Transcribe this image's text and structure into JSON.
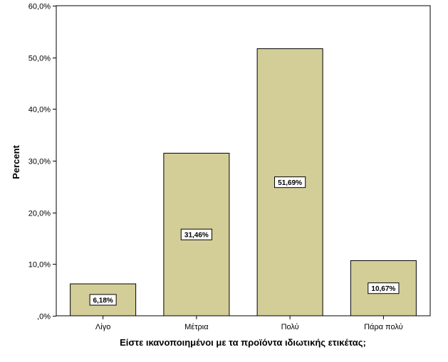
{
  "chart_data": {
    "type": "bar",
    "xlabel": "Είστε ικανοποιημένοι με τα προϊόντα ιδιωτικής ετικέτας;",
    "ylabel": "Percent",
    "categories": [
      "Λίγο",
      "Μέτρια",
      "Πολύ",
      "Πάρα πολύ"
    ],
    "values": [
      6.18,
      31.46,
      51.69,
      10.67
    ],
    "data_labels": [
      "6,18%",
      "31,46%",
      "51,69%",
      "10,67%"
    ],
    "ylim": [
      0,
      60
    ],
    "y_ticks": [
      0,
      10,
      20,
      30,
      40,
      50,
      60
    ],
    "y_tick_labels": [
      ",0%",
      "10,0%",
      "20,0%",
      "30,0%",
      "40,0%",
      "50,0%",
      "60,0%"
    ],
    "grid": false,
    "legend": "none",
    "bar_color": "#d3ce97",
    "bar_edge_color": "#000000",
    "background_color": "#ffffff"
  }
}
